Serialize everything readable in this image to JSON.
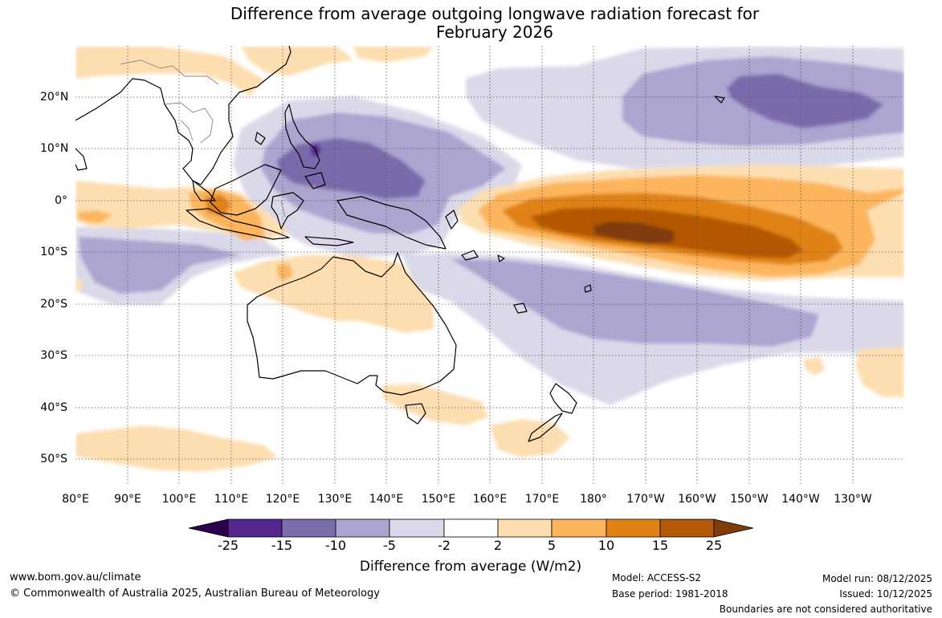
{
  "title": {
    "line1": "Difference from average outgoing longwave radiation forecast for",
    "line2": "February 2026"
  },
  "map": {
    "lat_labels": [
      "20°N",
      "10°N",
      "0°",
      "10°S",
      "20°S",
      "30°S",
      "40°S",
      "50°S"
    ],
    "lon_labels": [
      "80°E",
      "90°E",
      "100°E",
      "110°E",
      "120°E",
      "130°E",
      "140°E",
      "150°E",
      "160°E",
      "170°E",
      "180°",
      "170°W",
      "160°W",
      "150°W",
      "140°W",
      "130°W"
    ]
  },
  "colorbar": {
    "ticks": [
      "-25",
      "-15",
      "-10",
      "-5",
      "-2",
      "2",
      "5",
      "10",
      "15",
      "25"
    ],
    "colors": [
      "#54278f",
      "#7a6bab",
      "#aba5d0",
      "#d9d9ea",
      "#ffffff",
      "#fddeb0",
      "#fcb55d",
      "#e08214",
      "#b35806"
    ],
    "under_color": "#2d004b",
    "over_color": "#7f3b08",
    "label": "Difference from average (W/m2)"
  },
  "footer": {
    "website": "www.bom.gov.au/climate",
    "copyright": "© Commonwealth of Australia 2025, Australian Bureau of Meteorology",
    "model": "Model: ACCESS-S2",
    "base_period": "Base period: 1981-2018",
    "model_run": "Model run: 08/12/2025",
    "issued": "Issued: 10/12/2025",
    "disclaimer": "Boundaries are not considered authoritative"
  }
}
